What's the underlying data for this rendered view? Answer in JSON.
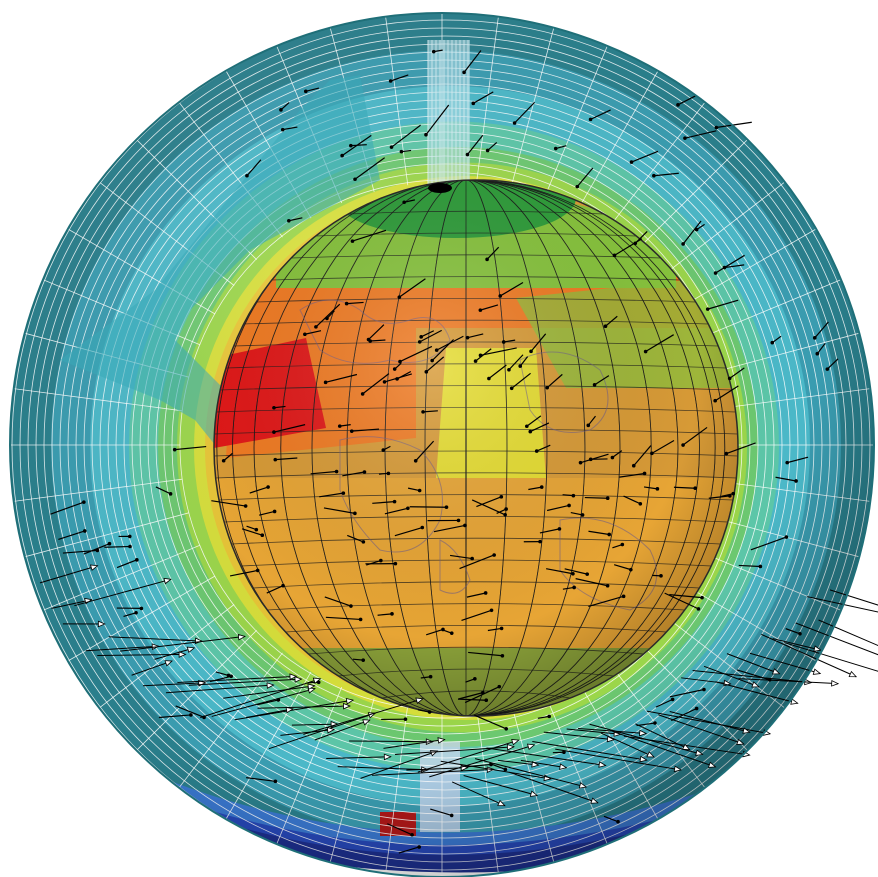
{
  "figure": {
    "shell_colors": [
      "#2a7f8c",
      "#3a9cb0",
      "#4bb8c8",
      "#5cc6a8",
      "#6cc870",
      "#9bd64a",
      "#d7df3a",
      "#e8c535"
    ],
    "core_colors": {
      "cap": "#2f9c3a",
      "high_lat": "#86c23c",
      "hot": "#e01818",
      "warm": "#ef7a22",
      "mid": "#e7a535",
      "yellow": "#e5dc30",
      "equator": "#d79a36",
      "low": "#b39b36",
      "south": "#8aa039"
    },
    "cold_band_colors": [
      "#1d2f8e",
      "#2748b8",
      "#3a78d0"
    ],
    "anomaly_color": "#b01818",
    "grid_line_color": "#ffffff",
    "core_grid_color": "#1a1a1a",
    "vector_color": "#000000"
  }
}
